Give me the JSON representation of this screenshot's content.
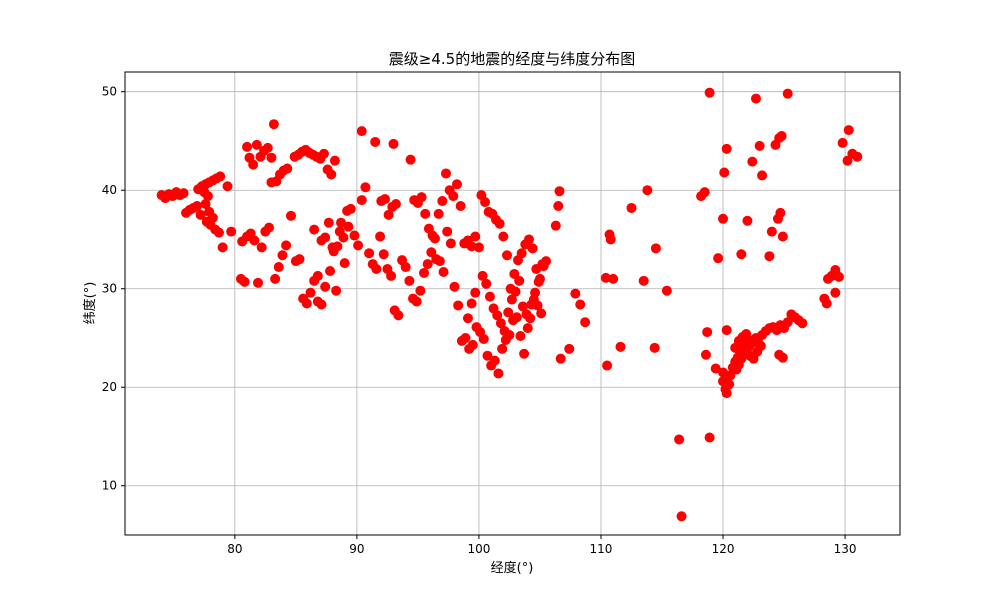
{
  "chart_data": {
    "type": "scatter",
    "title": "震级≥4.5的地震的经度与纬度分布图",
    "xlabel": "经度(°)",
    "ylabel": "纬度(°)",
    "xlim": [
      71,
      134.5
    ],
    "ylim": [
      5,
      52
    ],
    "xticks": [
      80,
      90,
      100,
      110,
      120,
      130
    ],
    "yticks": [
      10,
      20,
      30,
      40,
      50
    ],
    "grid": true,
    "marker_color": "#ff0000",
    "points": [
      [
        74.0,
        39.5
      ],
      [
        74.3,
        39.2
      ],
      [
        74.6,
        39.6
      ],
      [
        74.9,
        39.4
      ],
      [
        75.2,
        39.8
      ],
      [
        75.5,
        39.5
      ],
      [
        75.8,
        39.7
      ],
      [
        76.0,
        37.7
      ],
      [
        76.3,
        38.0
      ],
      [
        76.6,
        38.2
      ],
      [
        76.9,
        38.4
      ],
      [
        77.2,
        37.5
      ],
      [
        77.0,
        40.1
      ],
      [
        77.3,
        40.4
      ],
      [
        77.6,
        40.6
      ],
      [
        77.9,
        40.8
      ],
      [
        78.2,
        41.0
      ],
      [
        78.5,
        41.2
      ],
      [
        78.8,
        41.4
      ],
      [
        77.5,
        39.8
      ],
      [
        77.8,
        39.4
      ],
      [
        77.6,
        38.6
      ],
      [
        77.9,
        37.8
      ],
      [
        78.2,
        37.2
      ],
      [
        77.7,
        36.8
      ],
      [
        78.0,
        36.5
      ],
      [
        78.4,
        36.0
      ],
      [
        78.7,
        35.7
      ],
      [
        79.0,
        34.2
      ],
      [
        79.4,
        40.4
      ],
      [
        79.7,
        35.8
      ],
      [
        80.5,
        31.0
      ],
      [
        80.8,
        30.7
      ],
      [
        80.6,
        34.8
      ],
      [
        81.0,
        35.3
      ],
      [
        81.3,
        35.6
      ],
      [
        81.6,
        34.9
      ],
      [
        81.9,
        30.6
      ],
      [
        82.2,
        34.2
      ],
      [
        82.5,
        35.8
      ],
      [
        82.8,
        36.2
      ],
      [
        83.0,
        43.3
      ],
      [
        83.2,
        46.7
      ],
      [
        83.4,
        40.9
      ],
      [
        83.7,
        41.6
      ],
      [
        84.0,
        42.0
      ],
      [
        84.3,
        42.2
      ],
      [
        84.6,
        37.4
      ],
      [
        84.9,
        43.4
      ],
      [
        85.2,
        43.6
      ],
      [
        85.5,
        43.9
      ],
      [
        85.8,
        44.1
      ],
      [
        86.1,
        43.8
      ],
      [
        86.4,
        43.6
      ],
      [
        86.7,
        43.4
      ],
      [
        87.0,
        43.2
      ],
      [
        87.3,
        43.7
      ],
      [
        87.6,
        42.1
      ],
      [
        87.9,
        41.6
      ],
      [
        88.2,
        43.0
      ],
      [
        81.0,
        44.4
      ],
      [
        81.2,
        43.3
      ],
      [
        81.5,
        42.6
      ],
      [
        81.8,
        44.6
      ],
      [
        82.1,
        43.4
      ],
      [
        82.4,
        44.0
      ],
      [
        82.7,
        44.3
      ],
      [
        83.0,
        40.8
      ],
      [
        83.3,
        31.0
      ],
      [
        83.6,
        32.2
      ],
      [
        83.9,
        33.4
      ],
      [
        84.2,
        34.4
      ],
      [
        85.0,
        32.8
      ],
      [
        85.3,
        33.0
      ],
      [
        85.6,
        29.0
      ],
      [
        85.9,
        28.5
      ],
      [
        86.2,
        29.6
      ],
      [
        86.5,
        30.8
      ],
      [
        86.8,
        31.3
      ],
      [
        87.1,
        34.9
      ],
      [
        87.4,
        35.2
      ],
      [
        87.7,
        36.7
      ],
      [
        88.0,
        34.2
      ],
      [
        88.3,
        29.8
      ],
      [
        88.6,
        35.8
      ],
      [
        88.9,
        35.2
      ],
      [
        89.2,
        37.9
      ],
      [
        89.5,
        38.1
      ],
      [
        89.8,
        35.4
      ],
      [
        90.1,
        34.4
      ],
      [
        90.4,
        39.0
      ],
      [
        90.7,
        40.3
      ],
      [
        86.5,
        36.0
      ],
      [
        86.8,
        28.7
      ],
      [
        87.1,
        28.4
      ],
      [
        87.4,
        30.2
      ],
      [
        87.8,
        31.8
      ],
      [
        88.1,
        33.8
      ],
      [
        88.4,
        34.3
      ],
      [
        88.7,
        36.7
      ],
      [
        89.0,
        32.6
      ],
      [
        89.3,
        36.3
      ],
      [
        90.4,
        46.0
      ],
      [
        91.5,
        44.9
      ],
      [
        93.0,
        44.7
      ],
      [
        92.0,
        38.9
      ],
      [
        92.3,
        39.1
      ],
      [
        92.6,
        37.5
      ],
      [
        92.9,
        38.3
      ],
      [
        93.2,
        38.6
      ],
      [
        91.0,
        33.6
      ],
      [
        91.3,
        32.5
      ],
      [
        91.6,
        32.0
      ],
      [
        91.9,
        35.3
      ],
      [
        92.2,
        33.5
      ],
      [
        92.5,
        32.0
      ],
      [
        92.8,
        31.3
      ],
      [
        93.1,
        27.8
      ],
      [
        93.4,
        27.3
      ],
      [
        93.7,
        32.9
      ],
      [
        94.0,
        32.2
      ],
      [
        94.3,
        30.8
      ],
      [
        94.6,
        29.0
      ],
      [
        94.9,
        28.7
      ],
      [
        95.2,
        29.8
      ],
      [
        95.5,
        31.6
      ],
      [
        95.8,
        32.5
      ],
      [
        96.1,
        33.7
      ],
      [
        96.4,
        35.1
      ],
      [
        96.7,
        37.6
      ],
      [
        97.0,
        38.9
      ],
      [
        97.3,
        41.7
      ],
      [
        97.6,
        40.0
      ],
      [
        97.9,
        39.4
      ],
      [
        98.2,
        40.6
      ],
      [
        98.5,
        38.4
      ],
      [
        98.8,
        34.6
      ],
      [
        99.1,
        34.9
      ],
      [
        99.4,
        34.3
      ],
      [
        99.7,
        35.3
      ],
      [
        94.4,
        43.1
      ],
      [
        94.7,
        39.0
      ],
      [
        95.0,
        38.7
      ],
      [
        95.3,
        39.3
      ],
      [
        95.6,
        37.6
      ],
      [
        95.9,
        36.1
      ],
      [
        96.2,
        35.4
      ],
      [
        96.5,
        33.0
      ],
      [
        96.8,
        32.8
      ],
      [
        97.1,
        31.7
      ],
      [
        97.4,
        35.8
      ],
      [
        97.7,
        34.6
      ],
      [
        98.0,
        30.2
      ],
      [
        98.3,
        28.3
      ],
      [
        98.6,
        24.7
      ],
      [
        98.9,
        25.0
      ],
      [
        99.2,
        23.9
      ],
      [
        99.5,
        24.3
      ],
      [
        99.8,
        26.1
      ],
      [
        100.1,
        25.6
      ],
      [
        100.4,
        24.9
      ],
      [
        100.7,
        23.2
      ],
      [
        101.0,
        22.2
      ],
      [
        101.3,
        22.7
      ],
      [
        101.6,
        21.4
      ],
      [
        101.9,
        23.9
      ],
      [
        102.2,
        24.8
      ],
      [
        102.5,
        25.3
      ],
      [
        102.8,
        26.8
      ],
      [
        103.1,
        27.1
      ],
      [
        103.4,
        25.2
      ],
      [
        103.7,
        23.4
      ],
      [
        104.0,
        26.0
      ],
      [
        104.3,
        28.4
      ],
      [
        104.6,
        29.6
      ],
      [
        104.9,
        30.7
      ],
      [
        105.2,
        32.5
      ],
      [
        105.5,
        32.8
      ],
      [
        100.2,
        39.5
      ],
      [
        100.5,
        38.8
      ],
      [
        100.8,
        37.8
      ],
      [
        101.1,
        37.6
      ],
      [
        101.4,
        37.0
      ],
      [
        101.7,
        36.6
      ],
      [
        102.0,
        35.3
      ],
      [
        102.3,
        33.4
      ],
      [
        102.6,
        30.0
      ],
      [
        102.9,
        31.5
      ],
      [
        103.2,
        32.9
      ],
      [
        103.5,
        33.6
      ],
      [
        103.8,
        34.5
      ],
      [
        104.1,
        35.0
      ],
      [
        104.4,
        34.1
      ],
      [
        104.7,
        32.0
      ],
      [
        105.0,
        31.0
      ],
      [
        105.3,
        32.3
      ],
      [
        100.0,
        34.2
      ],
      [
        99.7,
        29.6
      ],
      [
        99.4,
        28.5
      ],
      [
        99.1,
        27.0
      ],
      [
        100.3,
        31.3
      ],
      [
        100.6,
        30.5
      ],
      [
        100.9,
        29.2
      ],
      [
        101.2,
        28.0
      ],
      [
        101.5,
        27.3
      ],
      [
        101.8,
        26.5
      ],
      [
        102.1,
        25.7
      ],
      [
        102.4,
        27.6
      ],
      [
        102.7,
        28.9
      ],
      [
        103.0,
        29.7
      ],
      [
        103.3,
        30.8
      ],
      [
        103.6,
        28.2
      ],
      [
        103.9,
        27.4
      ],
      [
        104.2,
        27.0
      ],
      [
        104.5,
        28.9
      ],
      [
        104.8,
        28.3
      ],
      [
        105.1,
        27.5
      ],
      [
        106.3,
        36.4
      ],
      [
        106.6,
        39.9
      ],
      [
        106.5,
        38.4
      ],
      [
        106.7,
        22.9
      ],
      [
        107.4,
        23.9
      ],
      [
        107.9,
        29.5
      ],
      [
        108.3,
        28.4
      ],
      [
        108.7,
        26.6
      ],
      [
        110.4,
        31.1
      ],
      [
        110.7,
        35.5
      ],
      [
        110.8,
        35.0
      ],
      [
        111.0,
        31.0
      ],
      [
        110.5,
        22.2
      ],
      [
        111.6,
        24.1
      ],
      [
        112.5,
        38.2
      ],
      [
        113.5,
        30.8
      ],
      [
        113.8,
        40.0
      ],
      [
        114.5,
        34.1
      ],
      [
        114.4,
        24.0
      ],
      [
        115.4,
        29.8
      ],
      [
        116.4,
        14.7
      ],
      [
        116.6,
        6.9
      ],
      [
        118.2,
        39.4
      ],
      [
        118.5,
        39.8
      ],
      [
        118.9,
        49.9
      ],
      [
        118.7,
        25.6
      ],
      [
        118.6,
        23.3
      ],
      [
        118.9,
        14.9
      ],
      [
        119.4,
        21.9
      ],
      [
        119.6,
        33.1
      ],
      [
        120.0,
        37.1
      ],
      [
        120.1,
        41.8
      ],
      [
        120.3,
        44.2
      ],
      [
        120.3,
        25.8
      ],
      [
        120.0,
        21.5
      ],
      [
        120.0,
        20.6
      ],
      [
        120.2,
        19.8
      ],
      [
        120.3,
        19.4
      ],
      [
        120.5,
        20.3
      ],
      [
        120.6,
        21.2
      ],
      [
        120.8,
        22.0
      ],
      [
        121.0,
        22.6
      ],
      [
        121.2,
        23.0
      ],
      [
        121.4,
        23.4
      ],
      [
        121.6,
        23.8
      ],
      [
        121.8,
        24.2
      ],
      [
        122.0,
        24.6
      ],
      [
        121.1,
        21.8
      ],
      [
        121.3,
        22.3
      ],
      [
        121.5,
        22.9
      ],
      [
        121.7,
        23.3
      ],
      [
        121.9,
        23.7
      ],
      [
        122.1,
        24.1
      ],
      [
        122.3,
        24.4
      ],
      [
        122.5,
        24.8
      ],
      [
        122.7,
        25.0
      ],
      [
        122.9,
        24.5
      ],
      [
        123.1,
        24.2
      ],
      [
        121.0,
        24.0
      ],
      [
        121.3,
        24.7
      ],
      [
        121.6,
        25.1
      ],
      [
        121.9,
        25.4
      ],
      [
        122.2,
        23.2
      ],
      [
        122.5,
        22.9
      ],
      [
        122.8,
        23.6
      ],
      [
        123.2,
        25.3
      ],
      [
        123.5,
        25.7
      ],
      [
        123.8,
        26.0
      ],
      [
        124.1,
        26.1
      ],
      [
        124.4,
        25.8
      ],
      [
        124.7,
        26.3
      ],
      [
        125.0,
        26.0
      ],
      [
        125.3,
        26.6
      ],
      [
        125.6,
        27.4
      ],
      [
        125.9,
        27.1
      ],
      [
        126.2,
        26.8
      ],
      [
        126.5,
        26.5
      ],
      [
        124.6,
        23.3
      ],
      [
        124.9,
        23.0
      ],
      [
        121.5,
        33.5
      ],
      [
        122.0,
        36.9
      ],
      [
        122.4,
        42.9
      ],
      [
        122.7,
        49.3
      ],
      [
        123.0,
        44.5
      ],
      [
        123.2,
        41.5
      ],
      [
        123.8,
        33.3
      ],
      [
        124.0,
        35.8
      ],
      [
        124.3,
        44.6
      ],
      [
        124.6,
        45.3
      ],
      [
        124.8,
        45.5
      ],
      [
        124.5,
        37.1
      ],
      [
        124.7,
        37.7
      ],
      [
        124.9,
        35.3
      ],
      [
        125.3,
        49.8
      ],
      [
        128.3,
        29.0
      ],
      [
        128.6,
        31.0
      ],
      [
        128.9,
        31.3
      ],
      [
        129.2,
        31.9
      ],
      [
        129.5,
        31.2
      ],
      [
        129.2,
        29.6
      ],
      [
        128.5,
        28.5
      ],
      [
        129.8,
        44.8
      ],
      [
        130.3,
        46.1
      ],
      [
        130.6,
        43.7
      ],
      [
        131.0,
        43.4
      ],
      [
        130.2,
        43.0
      ]
    ]
  }
}
